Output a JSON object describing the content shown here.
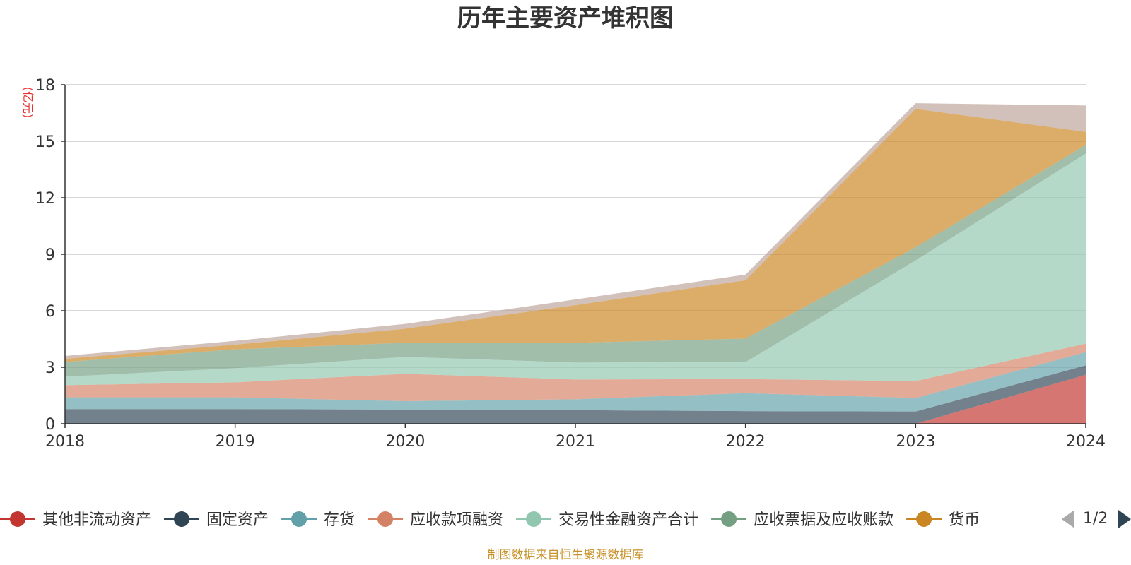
{
  "chart_data": {
    "type": "area",
    "title": "历年主要资产堆积图",
    "unit_label": "(亿元)",
    "x": [
      "2018",
      "2019",
      "2020",
      "2021",
      "2022",
      "2023",
      "2024"
    ],
    "ylim": [
      0,
      18
    ],
    "yticks": [
      0,
      3,
      6,
      9,
      12,
      15,
      18
    ],
    "grid": true,
    "stacked": true,
    "legend_position": "bottom",
    "series": [
      {
        "name": "其他非流动资产",
        "color": "#c23531",
        "values": [
          0,
          0,
          0,
          0,
          0,
          0,
          2.6
        ]
      },
      {
        "name": "固定资产",
        "color": "#2f4554",
        "values": [
          0.78,
          0.78,
          0.75,
          0.72,
          0.67,
          0.65,
          0.5
        ]
      },
      {
        "name": "存货",
        "color": "#61a0a8",
        "values": [
          0.62,
          0.62,
          0.45,
          0.58,
          0.95,
          0.72,
          0.7
        ]
      },
      {
        "name": "应收款项融资",
        "color": "#d48265",
        "values": [
          0.65,
          0.8,
          1.45,
          1.05,
          0.75,
          0.9,
          0.45
        ]
      },
      {
        "name": "交易性金融资产合计",
        "color": "#91c7ae",
        "values": [
          0.45,
          0.75,
          0.9,
          0.9,
          0.9,
          6.4,
          10.1
        ]
      },
      {
        "name": "应收票据及应收账款",
        "color": "#749f83",
        "values": [
          0.78,
          1.0,
          0.75,
          1.05,
          1.25,
          0.7,
          0.45
        ]
      },
      {
        "name": "货币",
        "color": "#ca8622",
        "values": [
          0.17,
          0.25,
          0.75,
          2.0,
          3.1,
          7.35,
          0.7
        ]
      },
      {
        "name": "",
        "color": "#bda29a",
        "values": [
          0.15,
          0.2,
          0.25,
          0.3,
          0.3,
          0.3,
          1.4
        ]
      }
    ],
    "legend_page": "1/2",
    "source": "制图数据来自恒生聚源数据库"
  }
}
